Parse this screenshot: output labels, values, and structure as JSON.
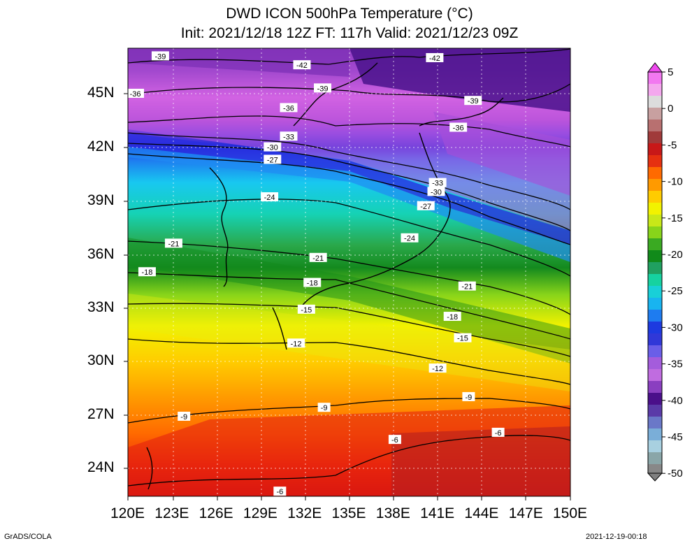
{
  "title_line1": "DWD ICON 500hPa Temperature (°C)",
  "title_line2": "Init: 2021/12/18 12Z  FT: 117h  Valid: 2021/12/23 09Z",
  "x_ticks": [
    "120E",
    "123E",
    "126E",
    "129E",
    "132E",
    "135E",
    "138E",
    "141E",
    "144E",
    "147E",
    "150E"
  ],
  "y_ticks": [
    "45N",
    "42N",
    "39N",
    "36N",
    "33N",
    "30N",
    "27N",
    "24N"
  ],
  "colorbar_labels": [
    "5",
    "0",
    "-5",
    "-10",
    "-15",
    "-20",
    "-25",
    "-30",
    "-35",
    "-40",
    "-45",
    "-50"
  ],
  "footer_left": "GrADS/COLA",
  "footer_right": "2021-12-19-00:18",
  "contour_labels": [
    {
      "text": "-42",
      "lon": 131.8,
      "lat": 46.6
    },
    {
      "text": "-42",
      "lon": 140.8,
      "lat": 47.0
    },
    {
      "text": "-39",
      "lon": 122.2,
      "lat": 47.1
    },
    {
      "text": "-39",
      "lon": 133.2,
      "lat": 45.3
    },
    {
      "text": "-39",
      "lon": 143.4,
      "lat": 44.6
    },
    {
      "text": "-36",
      "lon": 120.5,
      "lat": 45.0
    },
    {
      "text": "-36",
      "lon": 130.9,
      "lat": 44.2
    },
    {
      "text": "-36",
      "lon": 142.4,
      "lat": 43.1
    },
    {
      "text": "-33",
      "lon": 130.9,
      "lat": 42.6
    },
    {
      "text": "-33",
      "lon": 141.0,
      "lat": 40.0
    },
    {
      "text": "-30",
      "lon": 129.8,
      "lat": 42.0
    },
    {
      "text": "-30",
      "lon": 140.9,
      "lat": 39.5
    },
    {
      "text": "-27",
      "lon": 129.8,
      "lat": 41.3
    },
    {
      "text": "-27",
      "lon": 140.2,
      "lat": 38.7
    },
    {
      "text": "-24",
      "lon": 129.6,
      "lat": 39.2
    },
    {
      "text": "-24",
      "lon": 139.1,
      "lat": 36.9
    },
    {
      "text": "-21",
      "lon": 123.1,
      "lat": 36.6
    },
    {
      "text": "-21",
      "lon": 132.9,
      "lat": 35.8
    },
    {
      "text": "-21",
      "lon": 143.0,
      "lat": 34.2
    },
    {
      "text": "-18",
      "lon": 121.3,
      "lat": 35.0
    },
    {
      "text": "-18",
      "lon": 132.5,
      "lat": 34.4
    },
    {
      "text": "-18",
      "lon": 142.0,
      "lat": 32.5
    },
    {
      "text": "-15",
      "lon": 132.1,
      "lat": 32.9
    },
    {
      "text": "-15",
      "lon": 142.7,
      "lat": 31.3
    },
    {
      "text": "-12",
      "lon": 131.4,
      "lat": 31.0
    },
    {
      "text": "-12",
      "lon": 141.0,
      "lat": 29.6
    },
    {
      "text": "-9",
      "lon": 123.8,
      "lat": 26.9
    },
    {
      "text": "-9",
      "lon": 133.3,
      "lat": 27.4
    },
    {
      "text": "-9",
      "lon": 143.1,
      "lat": 28.0
    },
    {
      "text": "-6",
      "lon": 138.1,
      "lat": 25.6
    },
    {
      "text": "-6",
      "lon": 145.1,
      "lat": 26.0
    },
    {
      "text": "-6",
      "lon": 130.3,
      "lat": 22.7
    }
  ],
  "temperature_bands": [
    {
      "name": "-39 to -42 (NW)",
      "color": "#8a3fc0"
    },
    {
      "name": "deep violet NE",
      "color": "#4a0f8a"
    }
  ]
}
